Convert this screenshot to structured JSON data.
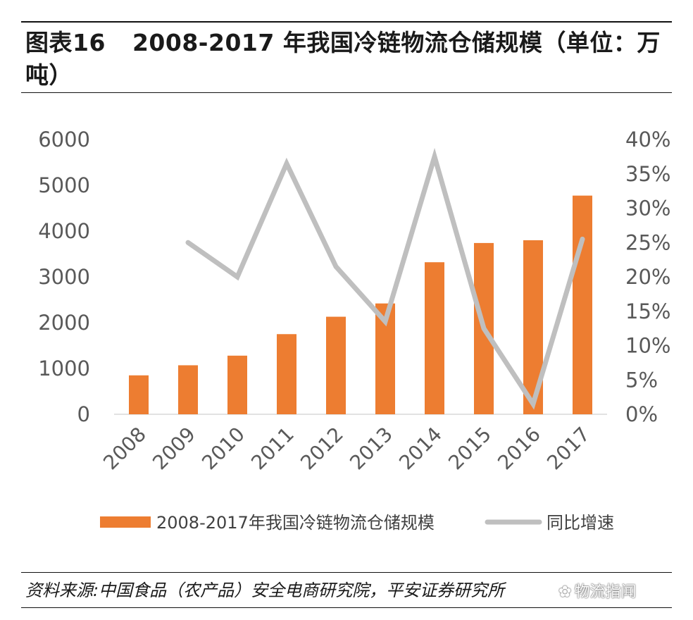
{
  "title": {
    "label": "图表16",
    "text": "2008-2017 年我国冷链物流仓储规模（单位：万吨）"
  },
  "source": "资料来源:中国食品（农产品）安全电商研究院，平安证券研究所",
  "watermark": "物流指闻",
  "chart_data": {
    "type": "bar",
    "categories": [
      "2008",
      "2009",
      "2010",
      "2011",
      "2012",
      "2013",
      "2014",
      "2015",
      "2016",
      "2017"
    ],
    "series": [
      {
        "name": "2008-2017年我国冷链物流仓储规模",
        "type": "bar",
        "axis": "left",
        "color": "#ED7D31",
        "values": [
          850,
          1070,
          1280,
          1750,
          2130,
          2420,
          3320,
          3740,
          3800,
          4775
        ]
      },
      {
        "name": "同比增速",
        "type": "line",
        "axis": "right",
        "color": "#BFBFBF",
        "values": [
          null,
          0.25,
          0.2,
          0.365,
          0.215,
          0.135,
          0.375,
          0.125,
          0.015,
          0.255
        ]
      }
    ],
    "y_left": {
      "min": 0,
      "max": 6000,
      "ticks": [
        "0",
        "1000",
        "2000",
        "3000",
        "4000",
        "5000",
        "6000"
      ]
    },
    "y_right": {
      "min": 0,
      "max": 0.4,
      "ticks": [
        "0%",
        "5%",
        "10%",
        "15%",
        "20%",
        "25%",
        "30%",
        "35%",
        "40%"
      ]
    },
    "grid": false,
    "legend": "bottom"
  }
}
